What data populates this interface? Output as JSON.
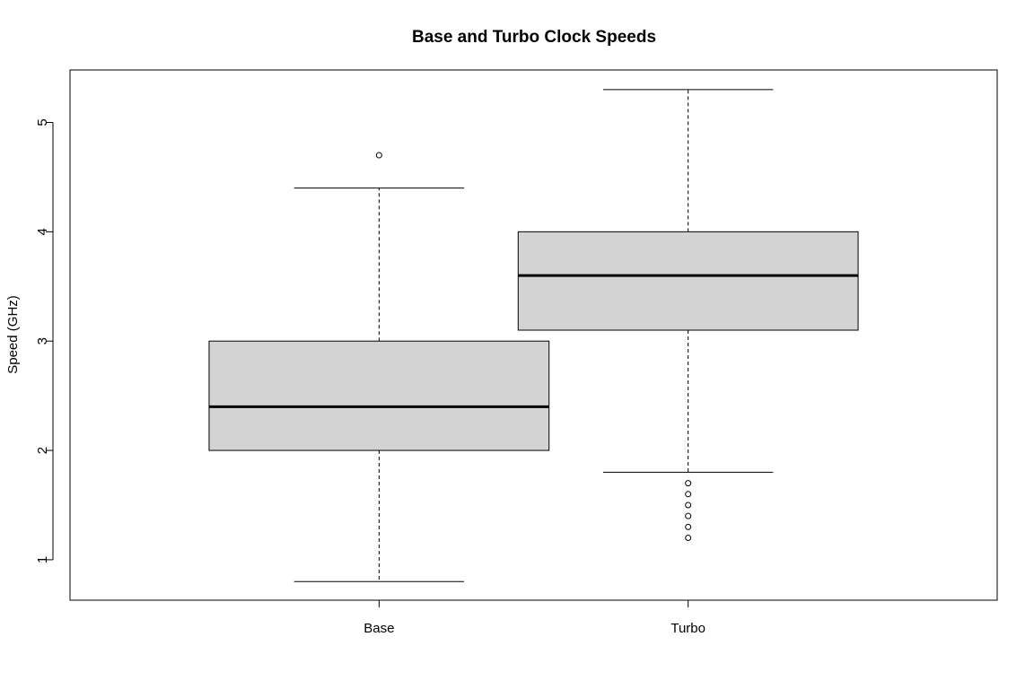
{
  "chart_data": {
    "type": "box",
    "title": "Base and Turbo Clock Speeds",
    "xlabel": "",
    "ylabel": "Speed (GHz)",
    "ylim": [
      0.63,
      5.48
    ],
    "y_ticks": [
      1,
      2,
      3,
      4,
      5
    ],
    "y_tick_labels": [
      "1",
      "2",
      "3",
      "4",
      "5"
    ],
    "categories": [
      "Base",
      "Turbo"
    ],
    "grid": false,
    "box_fill": "#d3d3d3",
    "line_color": "#000000",
    "boxes": [
      {
        "category": "Base",
        "whisker_low": 0.8,
        "q1": 2.0,
        "median": 2.4,
        "q3": 3.0,
        "whisker_high": 4.4,
        "outliers": [
          4.7
        ]
      },
      {
        "category": "Turbo",
        "whisker_low": 1.8,
        "q1": 3.1,
        "median": 3.6,
        "q3": 4.0,
        "whisker_high": 5.3,
        "outliers": [
          1.7,
          1.6,
          1.5,
          1.4,
          1.3,
          1.2
        ]
      }
    ]
  }
}
